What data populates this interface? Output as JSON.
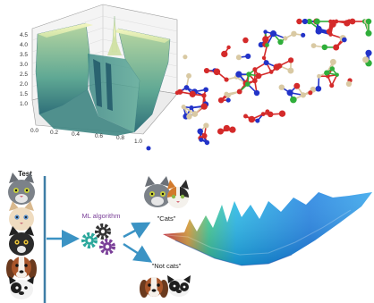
{
  "surface_plot": {
    "z_ticks": [
      "4.5",
      "4.0",
      "3.5",
      "3.0",
      "2.5",
      "2.0",
      "1.5",
      "1.0"
    ],
    "x_ticks": [
      "0.0",
      "0.2",
      "0.4",
      "0.6",
      "0.8",
      "1.0"
    ],
    "colors": {
      "frame": "#555555",
      "top": "#e8eeaa",
      "mid": "#9fc79a",
      "low": "#4f9f8e",
      "deep": "#2d6f7a"
    }
  },
  "ml_diagram": {
    "test_label": "Test",
    "algorithm_label": "ML algorithm",
    "cats_label": "\"Cats\"",
    "not_cats_label": "\"Not cats\"",
    "colors": {
      "divider": "#3e7ea6",
      "arrow": "#3b93c4",
      "algorithm_text": "#7a3f98"
    }
  },
  "icons": {
    "test_faces": [
      "grey-cat-face-icon",
      "cream-cat-face-icon",
      "black-cat-face-icon",
      "beagle-dog-face-icon",
      "bulldog-face-icon"
    ],
    "gears": [
      "teal-gear-icon",
      "dark-gear-icon",
      "purple-gear-icon"
    ],
    "cats_group": [
      "grey-cat-face-icon",
      "calico-cat-face-icon"
    ],
    "not_cats_group": [
      "beagle-dog-face-icon",
      "bulldog-face-icon"
    ]
  }
}
